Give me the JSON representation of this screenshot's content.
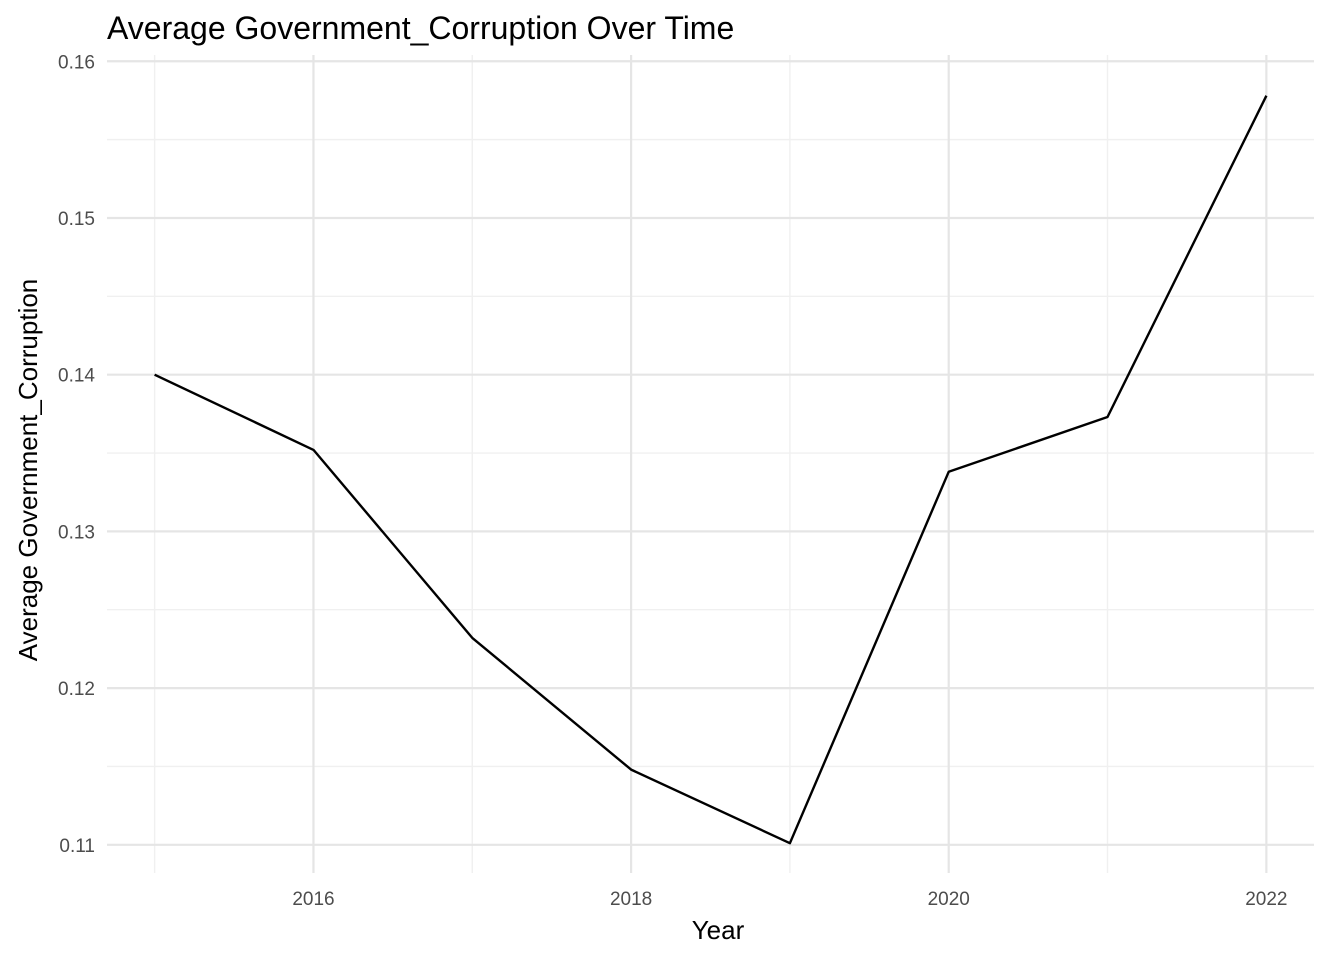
{
  "chart_data": {
    "type": "line",
    "title": "Average Government_Corruption Over Time",
    "xlabel": "Year",
    "ylabel": "Average Government_Corruption",
    "x": [
      2015,
      2016,
      2017,
      2018,
      2019,
      2020,
      2021,
      2022
    ],
    "series": [
      {
        "values": [
          0.14,
          0.1352,
          0.1232,
          0.1148,
          0.1101,
          0.1338,
          0.1373,
          0.1578
        ]
      }
    ],
    "xlim": [
      2014.7,
      2022.3
    ],
    "ylim": [
      0.1082,
      0.1604
    ],
    "x_ticks": [
      2016,
      2018,
      2020,
      2022
    ],
    "x_tick_labels": [
      "2016",
      "2018",
      "2020",
      "2022"
    ],
    "y_ticks": [
      0.11,
      0.12,
      0.13,
      0.14,
      0.15,
      0.16
    ],
    "y_tick_labels": [
      "0.11",
      "0.12",
      "0.13",
      "0.14",
      "0.15",
      "0.16"
    ],
    "grid": true,
    "legend": "none",
    "line_color": "#000000",
    "grid_color": "#e5e5e5"
  }
}
